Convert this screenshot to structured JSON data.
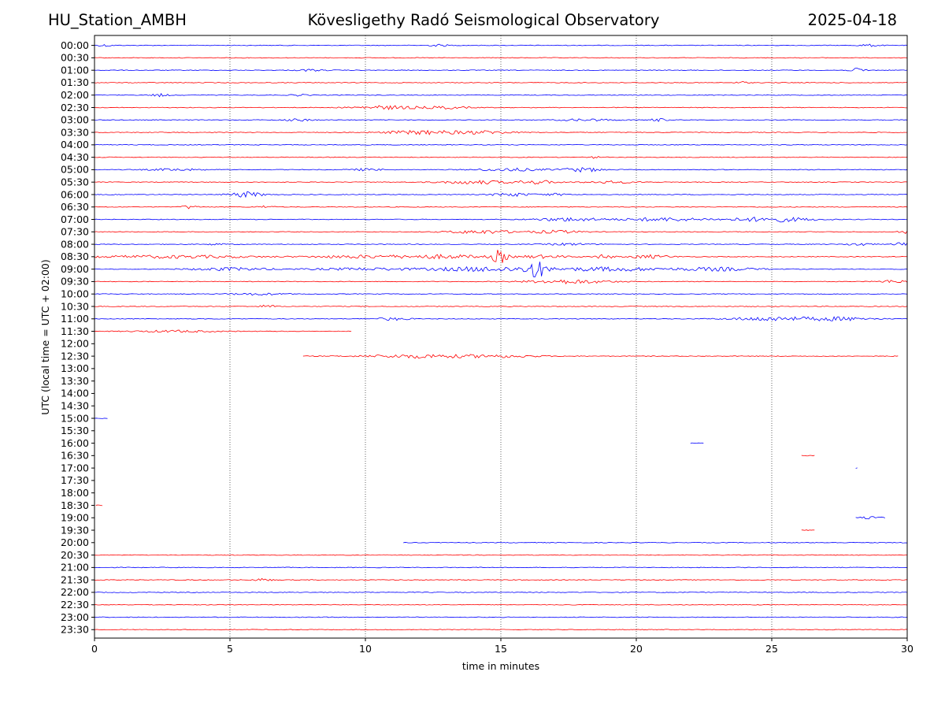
{
  "header": {
    "station": "HU_Station_AMBH",
    "observatory": "Kövesligethy Radó Seismological Observatory",
    "date": "2025-04-18"
  },
  "chart_data": {
    "type": "line",
    "title": "Kövesligethy Radó Seismological Observatory",
    "xlabel": "time in minutes",
    "ylabel": "UTC (local time = UTC + 02:00)",
    "xlim": [
      0,
      30
    ],
    "x_ticks": [
      0,
      5,
      10,
      15,
      20,
      25,
      30
    ],
    "grid_x": true,
    "trace_colors": [
      "#0000ff",
      "#ff0000"
    ],
    "row_labels": [
      "00:00",
      "00:30",
      "01:00",
      "01:30",
      "02:00",
      "02:30",
      "03:00",
      "03:30",
      "04:00",
      "04:30",
      "05:00",
      "05:30",
      "06:00",
      "06:30",
      "07:00",
      "07:30",
      "08:00",
      "08:30",
      "09:00",
      "09:30",
      "10:00",
      "10:30",
      "11:00",
      "11:30",
      "12:00",
      "12:30",
      "13:00",
      "13:30",
      "14:00",
      "14:30",
      "15:00",
      "15:30",
      "16:00",
      "16:30",
      "17:00",
      "17:30",
      "18:00",
      "18:30",
      "19:00",
      "19:30",
      "20:00",
      "20:30",
      "21:00",
      "21:30",
      "22:00",
      "22:30",
      "23:00",
      "23:30"
    ],
    "segments": [
      [
        [
          0,
          30
        ]
      ],
      [
        [
          0,
          30
        ]
      ],
      [
        [
          0,
          30
        ]
      ],
      [
        [
          0,
          30
        ]
      ],
      [
        [
          0,
          30
        ]
      ],
      [
        [
          0,
          30
        ]
      ],
      [
        [
          0,
          30
        ]
      ],
      [
        [
          0,
          30
        ]
      ],
      [
        [
          0,
          30
        ]
      ],
      [
        [
          0,
          30
        ]
      ],
      [
        [
          0,
          30
        ]
      ],
      [
        [
          0,
          30
        ]
      ],
      [
        [
          0,
          30
        ]
      ],
      [
        [
          0,
          30
        ]
      ],
      [
        [
          0,
          30
        ]
      ],
      [
        [
          0,
          30
        ]
      ],
      [
        [
          0,
          30
        ]
      ],
      [
        [
          0,
          30
        ]
      ],
      [
        [
          0,
          30
        ]
      ],
      [
        [
          0,
          30
        ]
      ],
      [
        [
          0,
          30
        ]
      ],
      [
        [
          0,
          30
        ]
      ],
      [
        [
          0,
          30
        ]
      ],
      [
        [
          0,
          9.5
        ]
      ],
      [],
      [
        [
          7.7,
          29.7
        ]
      ],
      [],
      [],
      [],
      [],
      [
        [
          0,
          0.5
        ]
      ],
      [],
      [
        [
          22,
          22.5
        ]
      ],
      [
        [
          26.1,
          26.6
        ]
      ],
      [
        [
          28.1,
          28.2
        ]
      ],
      [],
      [],
      [
        [
          0.05,
          0.3
        ]
      ],
      [
        [
          28.1,
          29.2
        ]
      ],
      [
        [
          26.1,
          26.6
        ]
      ],
      [
        [
          11.4,
          30
        ]
      ],
      [
        [
          0,
          30
        ]
      ],
      [
        [
          0,
          30
        ]
      ],
      [
        [
          0,
          30
        ]
      ],
      [
        [
          0,
          30
        ]
      ],
      [
        [
          0,
          30
        ]
      ],
      [
        [
          0,
          30
        ]
      ],
      [
        [
          0,
          30
        ]
      ]
    ],
    "events": [
      {
        "row": 0,
        "center": 0.4,
        "amplitude": 1.2,
        "width": 0.3
      },
      {
        "row": 0,
        "center": 12.7,
        "amplitude": 1.2,
        "width": 0.4
      },
      {
        "row": 0,
        "center": 28.6,
        "amplitude": 1.2,
        "width": 0.4
      },
      {
        "row": 2,
        "center": 8,
        "amplitude": 1.2,
        "width": 0.5
      },
      {
        "row": 2,
        "center": 28.2,
        "amplitude": 2.5,
        "width": 0.3
      },
      {
        "row": 3,
        "center": 23.9,
        "amplitude": 1.5,
        "width": 0.2
      },
      {
        "row": 4,
        "center": 2.4,
        "amplitude": 1.8,
        "width": 0.3
      },
      {
        "row": 4,
        "center": 7.6,
        "amplitude": 1.2,
        "width": 0.3
      },
      {
        "row": 5,
        "center": 10.8,
        "amplitude": 2.2,
        "width": 1.2
      },
      {
        "row": 5,
        "center": 13,
        "amplitude": 1.5,
        "width": 0.8
      },
      {
        "row": 6,
        "center": 7.5,
        "amplitude": 1.3,
        "width": 0.6
      },
      {
        "row": 6,
        "center": 18.2,
        "amplitude": 1.3,
        "width": 1
      },
      {
        "row": 6,
        "center": 20.8,
        "amplitude": 1.8,
        "width": 0.3
      },
      {
        "row": 7,
        "center": 12.2,
        "amplitude": 2.5,
        "width": 1.5
      },
      {
        "row": 7,
        "center": 14.5,
        "amplitude": 1.8,
        "width": 1
      },
      {
        "row": 9,
        "center": 18.5,
        "amplitude": 1.2,
        "width": 0.2
      },
      {
        "row": 10,
        "center": 3,
        "amplitude": 1.3,
        "width": 1
      },
      {
        "row": 10,
        "center": 10,
        "amplitude": 1.3,
        "width": 0.6
      },
      {
        "row": 10,
        "center": 15.3,
        "amplitude": 1.8,
        "width": 1.2
      },
      {
        "row": 10,
        "center": 18,
        "amplitude": 2.5,
        "width": 0.8
      },
      {
        "row": 11,
        "center": 14,
        "amplitude": 2.2,
        "width": 1.2
      },
      {
        "row": 11,
        "center": 16.3,
        "amplitude": 2.2,
        "width": 0.8
      },
      {
        "row": 11,
        "center": 19,
        "amplitude": 1.3,
        "width": 1
      },
      {
        "row": 12,
        "center": 5.6,
        "amplitude": 3.5,
        "width": 0.6
      },
      {
        "row": 12,
        "center": 15.4,
        "amplitude": 2.2,
        "width": 0.7
      },
      {
        "row": 12,
        "center": 17,
        "amplitude": 1.3,
        "width": 0.5
      },
      {
        "row": 13,
        "center": 3.5,
        "amplitude": 2.2,
        "width": 0.3
      },
      {
        "row": 13,
        "center": 6.3,
        "amplitude": 1.5,
        "width": 0.3
      },
      {
        "row": 14,
        "center": 17.5,
        "amplitude": 2.2,
        "width": 1.2
      },
      {
        "row": 14,
        "center": 21,
        "amplitude": 2.2,
        "width": 1.5
      },
      {
        "row": 14,
        "center": 25,
        "amplitude": 3,
        "width": 1.5
      },
      {
        "row": 15,
        "center": 14.3,
        "amplitude": 2.2,
        "width": 1.2
      },
      {
        "row": 15,
        "center": 17,
        "amplitude": 1.8,
        "width": 1
      },
      {
        "row": 15,
        "center": 29.9,
        "amplitude": 2.5,
        "width": 0.2
      },
      {
        "row": 16,
        "center": 4.5,
        "amplitude": 1.2,
        "width": 0.3
      },
      {
        "row": 16,
        "center": 17.5,
        "amplitude": 1.3,
        "width": 0.8
      },
      {
        "row": 16,
        "center": 28.2,
        "amplitude": 2,
        "width": 0.4
      },
      {
        "row": 16,
        "center": 29.8,
        "amplitude": 2,
        "width": 0.3
      },
      {
        "row": 17,
        "center": 3,
        "amplitude": 1.8,
        "width": 3
      },
      {
        "row": 17,
        "center": 10,
        "amplitude": 1.8,
        "width": 2
      },
      {
        "row": 17,
        "center": 13,
        "amplitude": 2.2,
        "width": 1.5
      },
      {
        "row": 17,
        "center": 14.95,
        "amplitude": 9,
        "width": 0.25
      },
      {
        "row": 17,
        "center": 16.5,
        "amplitude": 1.8,
        "width": 1
      },
      {
        "row": 17,
        "center": 18.8,
        "amplitude": 3,
        "width": 0.3
      },
      {
        "row": 17,
        "center": 20.5,
        "amplitude": 2.2,
        "width": 0.8
      },
      {
        "row": 18,
        "center": 5,
        "amplitude": 1.8,
        "width": 1.5
      },
      {
        "row": 18,
        "center": 10,
        "amplitude": 1.5,
        "width": 2
      },
      {
        "row": 18,
        "center": 14.5,
        "amplitude": 3,
        "width": 2
      },
      {
        "row": 18,
        "center": 16.3,
        "amplitude": 10,
        "width": 0.35
      },
      {
        "row": 18,
        "center": 19,
        "amplitude": 2.5,
        "width": 2
      },
      {
        "row": 18,
        "center": 23,
        "amplitude": 2.2,
        "width": 1.5
      },
      {
        "row": 19,
        "center": 17.5,
        "amplitude": 2.5,
        "width": 1.5
      },
      {
        "row": 19,
        "center": 29.5,
        "amplitude": 2,
        "width": 0.5
      },
      {
        "row": 20,
        "center": 6,
        "amplitude": 1.2,
        "width": 1
      },
      {
        "row": 21,
        "center": 6.4,
        "amplitude": 1.8,
        "width": 0.3
      },
      {
        "row": 22,
        "center": 11,
        "amplitude": 1.8,
        "width": 0.6
      },
      {
        "row": 22,
        "center": 25,
        "amplitude": 2.5,
        "width": 1.5
      },
      {
        "row": 22,
        "center": 27.5,
        "amplitude": 2.2,
        "width": 1.2
      },
      {
        "row": 23,
        "center": 3,
        "amplitude": 1.2,
        "width": 1.5
      },
      {
        "row": 25,
        "center": 12,
        "amplitude": 2.2,
        "width": 2
      },
      {
        "row": 25,
        "center": 15,
        "amplitude": 1.5,
        "width": 1.5
      },
      {
        "row": 38,
        "center": 28.7,
        "amplitude": 1.3,
        "width": 0.4
      },
      {
        "row": 43,
        "center": 6.2,
        "amplitude": 1.8,
        "width": 0.3
      }
    ]
  }
}
